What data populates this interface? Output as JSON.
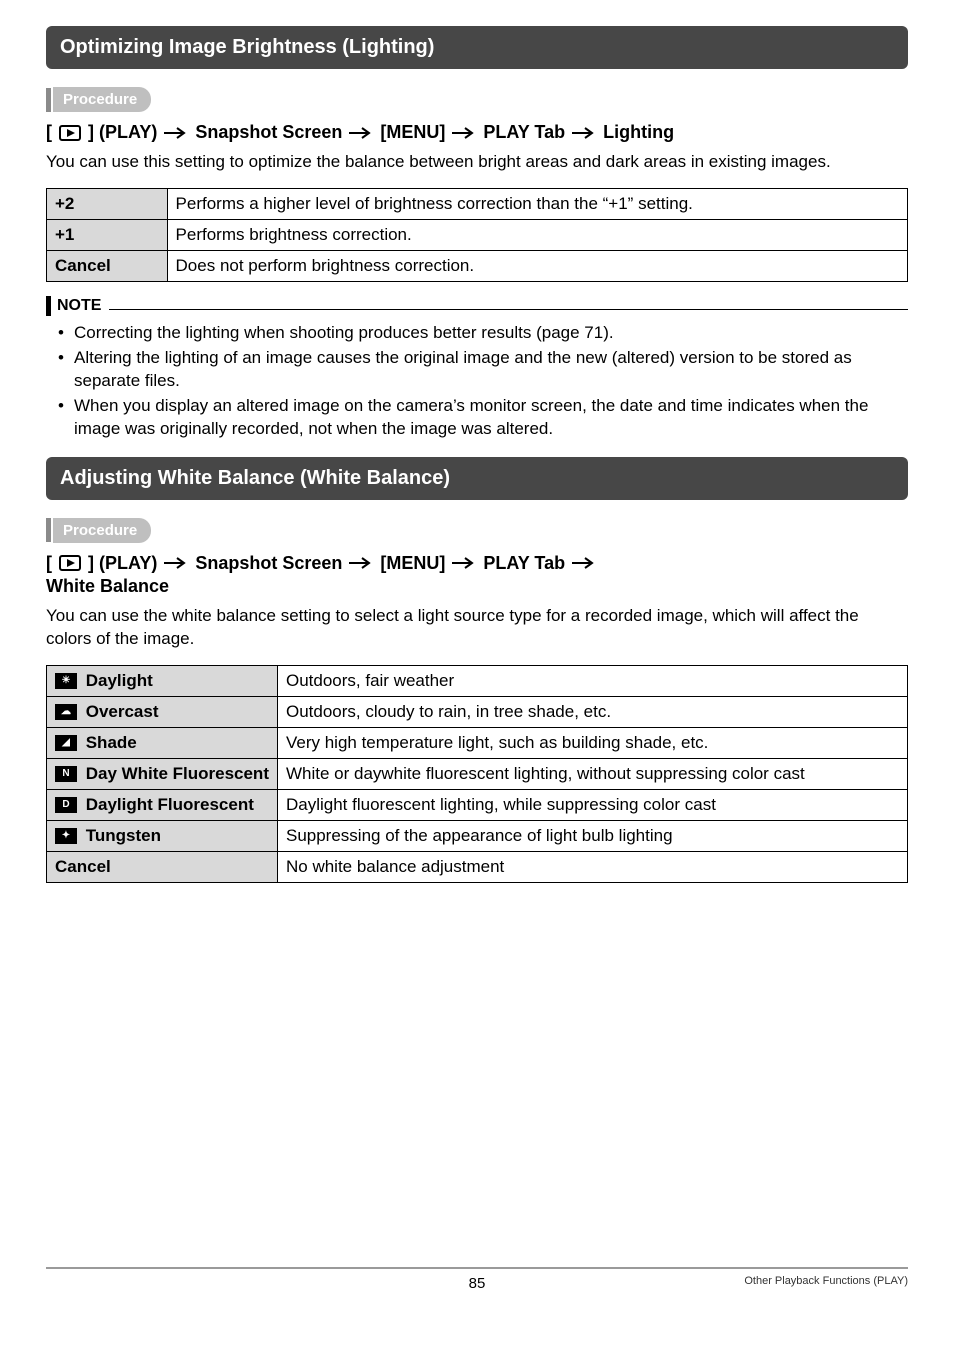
{
  "colors": {
    "section_header_bg": "#474747",
    "section_header_fg": "#ffffff",
    "proc_label_bg": "#bfbfbf",
    "proc_label_fg": "#ffffff",
    "table_hdr_bg": "#d9d9d9",
    "border": "#000000",
    "page_bg": "#ffffff"
  },
  "section1": {
    "title": "Optimizing Image Brightness (Lighting)",
    "procedure_label": "Procedure",
    "breadcrumb_parts": [
      "[",
      "PLAY_ICON",
      "] (PLAY)",
      "ARROW",
      "Snapshot Screen",
      "ARROW",
      "[MENU]",
      "ARROW",
      "PLAY Tab",
      "ARROW",
      "Lighting"
    ],
    "intro": "You can use this setting to optimize the balance between bright areas and dark areas in existing images.",
    "table": {
      "col_widths": [
        "14%",
        "86%"
      ],
      "rows": [
        {
          "k": "+2",
          "v": "Performs a higher level of brightness correction than the “+1” setting."
        },
        {
          "k": "+1",
          "v": "Performs brightness correction."
        },
        {
          "k": "Cancel",
          "v": "Does not perform brightness correction."
        }
      ]
    },
    "note_label": "NOTE",
    "notes": [
      "Correcting the lighting when shooting produces better results (page 71).",
      "Altering the lighting of an image causes the original image and the new (altered) version to be stored as separate files.",
      "When you display an altered image on the camera’s monitor screen, the date and time indicates when the image was originally recorded, not when the image was altered."
    ]
  },
  "section2": {
    "title": "Adjusting White Balance (White Balance)",
    "procedure_label": "Procedure",
    "breadcrumb_parts": [
      "[",
      "PLAY_ICON",
      "] (PLAY)",
      "ARROW",
      "Snapshot Screen",
      "ARROW",
      "[MENU]",
      "ARROW",
      "PLAY Tab",
      "ARROW"
    ],
    "breadcrumb_line2": "White Balance",
    "intro": "You can use the white balance setting to select a light source type for a recorded image, which will affect the colors of the image.",
    "table": {
      "col_widths": [
        "26%",
        "74%"
      ],
      "rows": [
        {
          "icon": "☀",
          "label": "Daylight",
          "desc": "Outdoors, fair weather"
        },
        {
          "icon": "☁",
          "label": "Overcast",
          "desc": "Outdoors, cloudy to rain, in tree shade, etc."
        },
        {
          "icon": "◢",
          "label": "Shade",
          "desc": "Very high temperature light, such as building shade, etc."
        },
        {
          "icon": "N",
          "label": "Day White Fluorescent",
          "desc": "White or daywhite fluorescent lighting, without suppressing color cast"
        },
        {
          "icon": "D",
          "label": "Daylight Fluorescent",
          "desc": "Daylight fluorescent lighting, while suppressing color cast"
        },
        {
          "icon": "✦",
          "label": "Tungsten",
          "desc": "Suppressing of the appearance of light bulb lighting"
        },
        {
          "icon": "",
          "label": "Cancel",
          "desc": "No white balance adjustment"
        }
      ]
    }
  },
  "footer": {
    "page_number": "85",
    "doc_title": "Other Playback Functions (PLAY)"
  }
}
